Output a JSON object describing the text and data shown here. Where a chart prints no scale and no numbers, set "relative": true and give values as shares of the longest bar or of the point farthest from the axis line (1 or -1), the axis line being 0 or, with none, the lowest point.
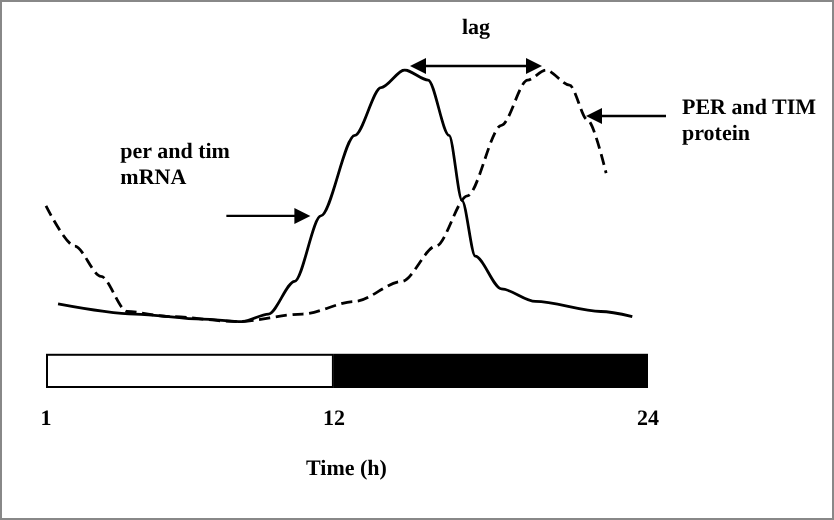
{
  "chart_data": {
    "type": "line",
    "relative": true,
    "xlabel": "Time (h)",
    "xlim": [
      1,
      24
    ],
    "xticks": [
      1,
      12,
      24
    ],
    "tick_labels": "x",
    "series": [
      {
        "color": "#000000",
        "line_style": "solid",
        "x": [
          1.46,
          4.4,
          6.96,
          8.5,
          9.5,
          10.5,
          11.5,
          12.8,
          13.8,
          14.7,
          15.6,
          16.4,
          16.9,
          17.4,
          18.4,
          19.7,
          22.2,
          23.4
        ],
        "values": [
          0.07,
          0.03,
          0.01,
          0,
          0.03,
          0.16,
          0.42,
          0.74,
          0.93,
          1,
          0.96,
          0.74,
          0.48,
          0.26,
          0.13,
          0.08,
          0.04,
          0.02
        ]
      },
      {
        "color": "#000000",
        "line_style": "dashed",
        "x": [
          1,
          2.1,
          3.1,
          4.1,
          5.7,
          8.3,
          10.8,
          12.8,
          14.6,
          15.9,
          17.1,
          18.4,
          19.4,
          20.1,
          21.0,
          21.7,
          22.4
        ],
        "values": [
          0.46,
          0.3,
          0.18,
          0.04,
          0.02,
          0,
          0.03,
          0.08,
          0.16,
          0.3,
          0.5,
          0.78,
          0.96,
          1,
          0.94,
          0.8,
          0.59
        ]
      }
    ],
    "annotations": [
      "lag",
      {
        "text": "per and tim mRNA",
        "x": 11.1,
        "y": 0.42
      },
      "PER and TIM protein"
    ]
  }
}
